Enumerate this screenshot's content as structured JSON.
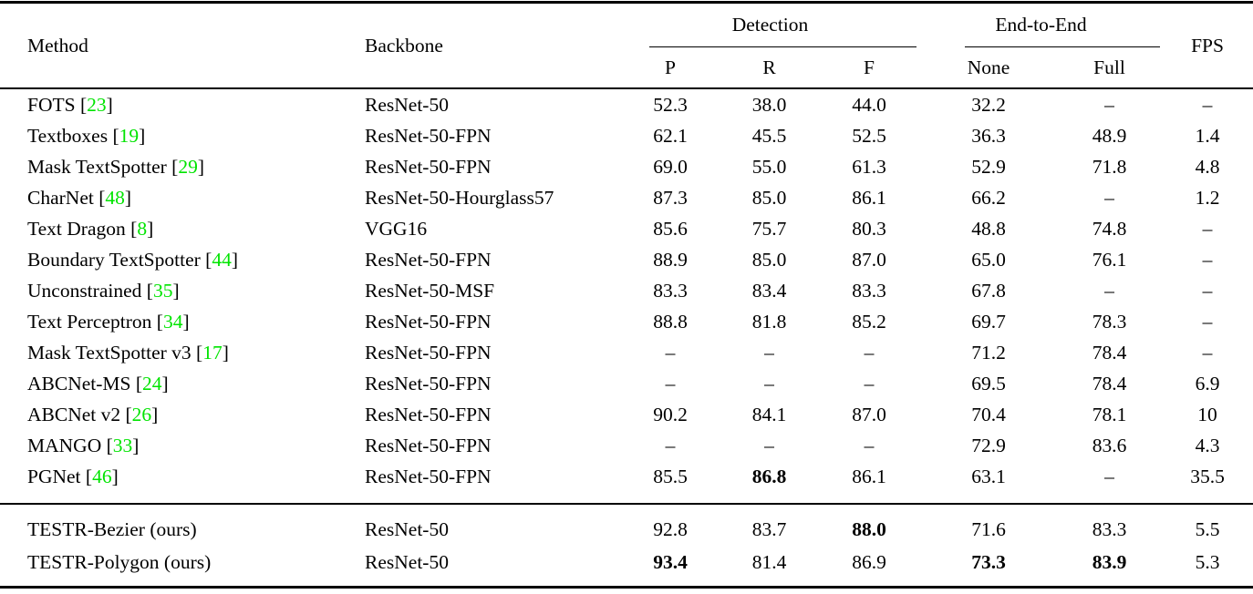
{
  "table": {
    "header": {
      "method": "Method",
      "backbone": "Backbone",
      "detection": "Detection",
      "end_to_end": "End-to-End",
      "fps": "FPS",
      "sub": [
        "P",
        "R",
        "F",
        "None",
        "Full"
      ]
    },
    "colors": {
      "citation_green": "#00e400",
      "text": "#000000",
      "background": "#ffffff"
    },
    "dash": "–",
    "rows": [
      {
        "group": 1,
        "method": "FOTS",
        "cite": "23",
        "backbone": "ResNet-50",
        "values": [
          "52.3",
          "38.0",
          "44.0",
          "32.2",
          "–",
          "–"
        ],
        "bold": []
      },
      {
        "group": 1,
        "method": "Textboxes",
        "cite": "19",
        "backbone": "ResNet-50-FPN",
        "values": [
          "62.1",
          "45.5",
          "52.5",
          "36.3",
          "48.9",
          "1.4"
        ],
        "bold": []
      },
      {
        "group": 1,
        "method": "Mask TextSpotter",
        "cite": "29",
        "backbone": "ResNet-50-FPN",
        "values": [
          "69.0",
          "55.0",
          "61.3",
          "52.9",
          "71.8",
          "4.8"
        ],
        "bold": []
      },
      {
        "group": 1,
        "method": "CharNet",
        "cite": "48",
        "backbone": "ResNet-50-Hourglass57",
        "values": [
          "87.3",
          "85.0",
          "86.1",
          "66.2",
          "–",
          "1.2"
        ],
        "bold": []
      },
      {
        "group": 1,
        "method": "Text Dragon",
        "cite": "8",
        "backbone": "VGG16",
        "values": [
          "85.6",
          "75.7",
          "80.3",
          "48.8",
          "74.8",
          "–"
        ],
        "bold": []
      },
      {
        "group": 1,
        "method": "Boundary TextSpotter",
        "cite": "44",
        "backbone": "ResNet-50-FPN",
        "values": [
          "88.9",
          "85.0",
          "87.0",
          "65.0",
          "76.1",
          "–"
        ],
        "bold": []
      },
      {
        "group": 1,
        "method": "Unconstrained",
        "cite": "35",
        "backbone": "ResNet-50-MSF",
        "values": [
          "83.3",
          "83.4",
          "83.3",
          "67.8",
          "–",
          "–"
        ],
        "bold": []
      },
      {
        "group": 1,
        "method": "Text Perceptron",
        "cite": "34",
        "backbone": "ResNet-50-FPN",
        "values": [
          "88.8",
          "81.8",
          "85.2",
          "69.7",
          "78.3",
          "–"
        ],
        "bold": []
      },
      {
        "group": 1,
        "method": "Mask TextSpotter v3",
        "cite": "17",
        "backbone": "ResNet-50-FPN",
        "values": [
          "–",
          "–",
          "–",
          "71.2",
          "78.4",
          "–"
        ],
        "bold": []
      },
      {
        "group": 1,
        "method": "ABCNet-MS",
        "cite": "24",
        "backbone": "ResNet-50-FPN",
        "values": [
          "–",
          "–",
          "–",
          "69.5",
          "78.4",
          "6.9"
        ],
        "bold": []
      },
      {
        "group": 1,
        "method": "ABCNet v2",
        "cite": "26",
        "backbone": "ResNet-50-FPN",
        "values": [
          "90.2",
          "84.1",
          "87.0",
          "70.4",
          "78.1",
          "10"
        ],
        "bold": []
      },
      {
        "group": 1,
        "method": "MANGO",
        "cite": "33",
        "backbone": "ResNet-50-FPN",
        "values": [
          "–",
          "–",
          "–",
          "72.9",
          "83.6",
          "4.3"
        ],
        "bold": []
      },
      {
        "group": 1,
        "method": "PGNet",
        "cite": "46",
        "backbone": "ResNet-50-FPN",
        "values": [
          "85.5",
          "86.8",
          "86.1",
          "63.1",
          "–",
          "35.5"
        ],
        "bold": [
          1
        ]
      },
      {
        "group": 2,
        "method": "TESTR-Bezier (ours)",
        "cite": null,
        "backbone": "ResNet-50",
        "values": [
          "92.8",
          "83.7",
          "88.0",
          "71.6",
          "83.3",
          "5.5"
        ],
        "bold": [
          2
        ]
      },
      {
        "group": 2,
        "method": "TESTR-Polygon (ours)",
        "cite": null,
        "backbone": "ResNet-50",
        "values": [
          "93.4",
          "81.4",
          "86.9",
          "73.3",
          "83.9",
          "5.3"
        ],
        "bold": [
          0,
          3,
          4
        ]
      }
    ]
  }
}
